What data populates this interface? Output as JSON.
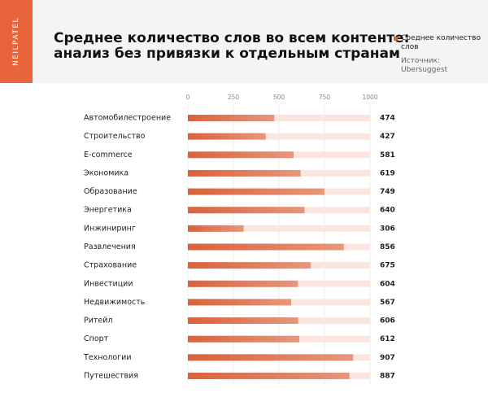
{
  "brand": "NEILPATEL",
  "chart_data": {
    "type": "bar",
    "orientation": "horizontal",
    "title": [
      "Среднее количество слов во всем контенте:",
      "анализ без привязки к отдельным странам"
    ],
    "source": "Источник: Ubersuggest",
    "categories": [
      "Автомобилестроение",
      "Строительство",
      "E-commerce",
      "Экономика",
      "Образование",
      "Энергетика",
      "Инжиниринг",
      "Развлечения",
      "Страхование",
      "Инвестиции",
      "Недвижимость",
      "Ритейл",
      "Спорт",
      "Технологии",
      "Путешествия"
    ],
    "series": [
      {
        "name": "Среднее количество слов",
        "color": "#d9623b",
        "values": [
          474,
          427,
          581,
          619,
          749,
          640,
          306,
          856,
          675,
          604,
          567,
          606,
          612,
          907,
          887
        ]
      }
    ],
    "xlim": [
      0,
      1000
    ],
    "xticks": [
      0,
      250,
      500,
      750,
      1000
    ],
    "grid": true
  }
}
